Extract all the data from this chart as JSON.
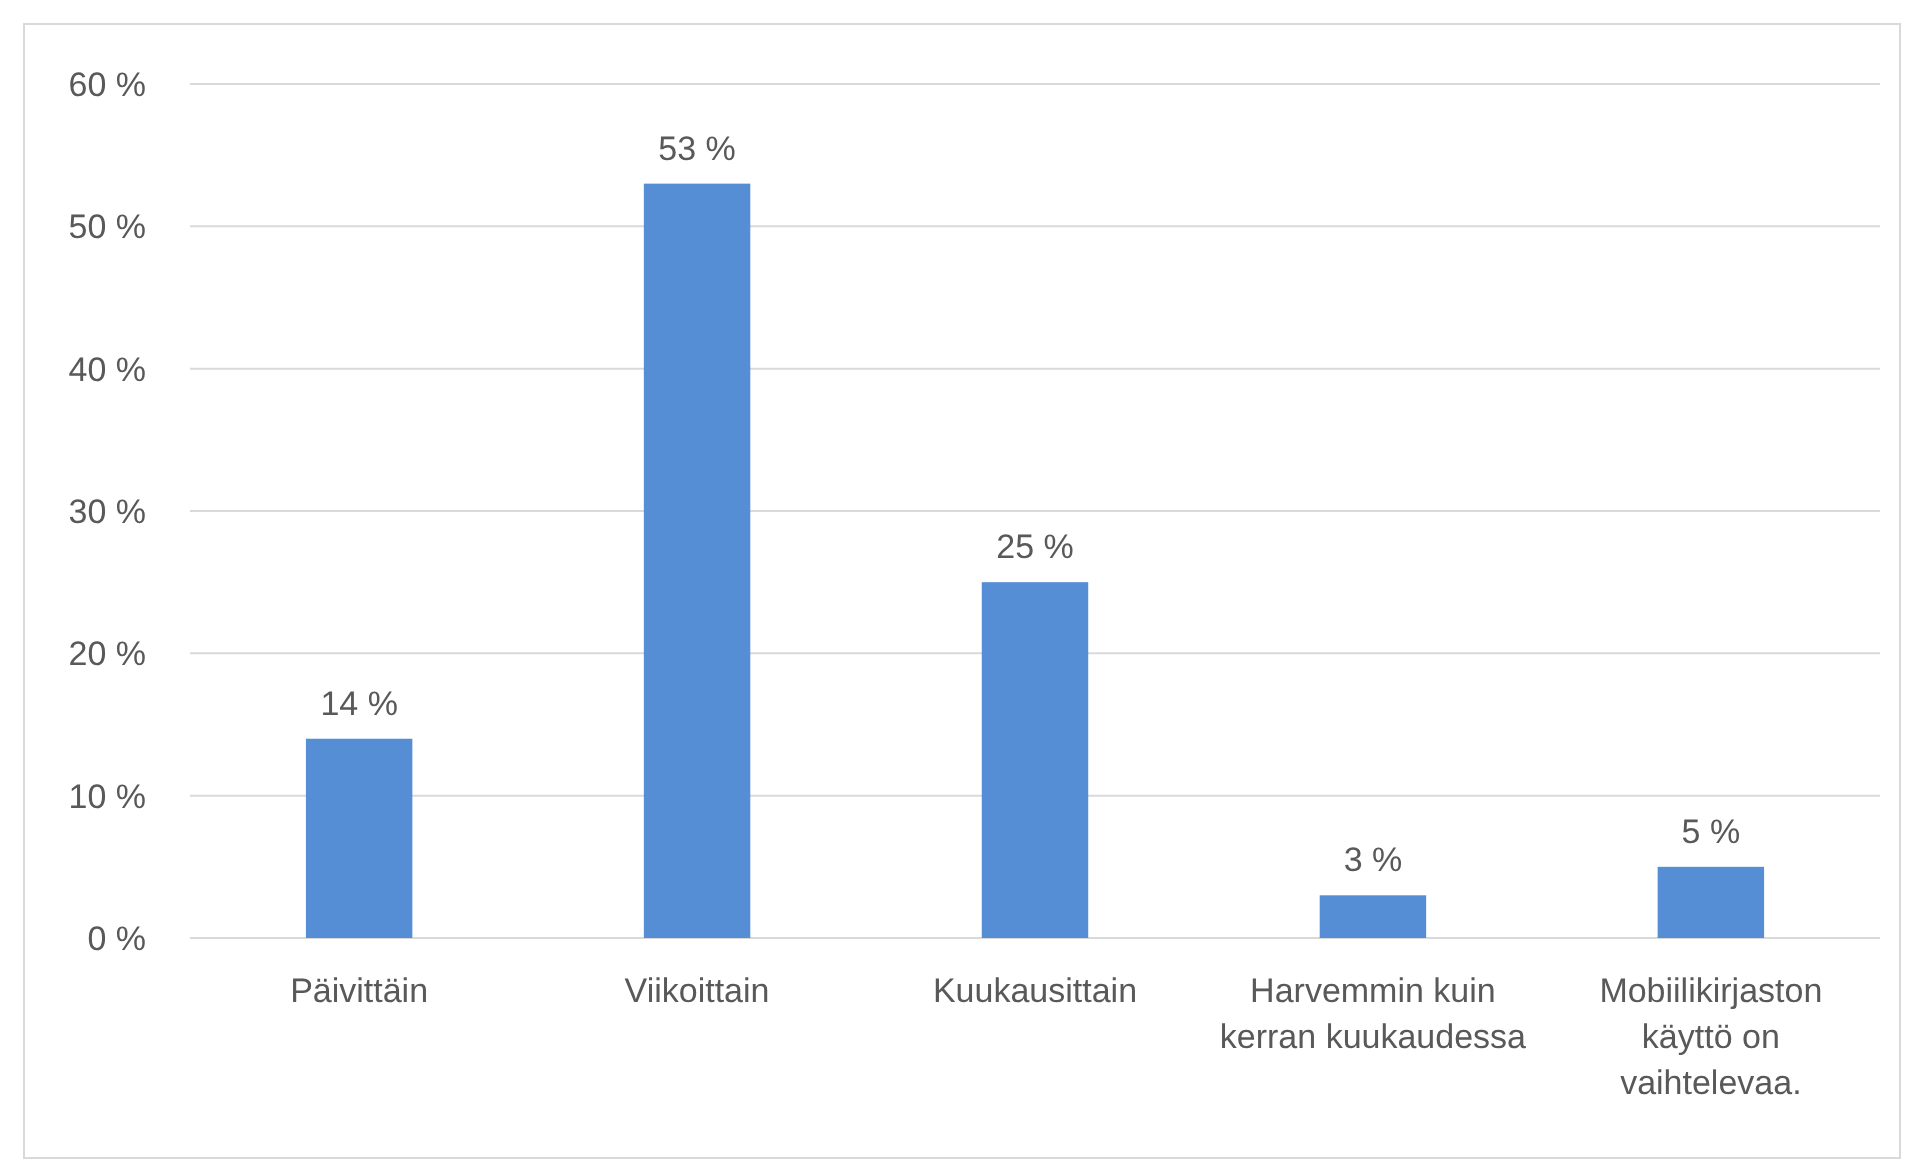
{
  "chart_data": {
    "type": "bar",
    "categories": [
      "Päivittäin",
      "Viikoittain",
      "Kuukausittain",
      "Harvemmin kuin kerran kuukaudessa",
      "Mobiilikirjaston käyttö on vaihtelevaa."
    ],
    "values": [
      14,
      53,
      25,
      3,
      5
    ],
    "value_labels": [
      "14 %",
      "53 %",
      "25 %",
      "3 %",
      "5 %"
    ],
    "color": "#558ed5",
    "ylim": [
      0,
      60
    ],
    "yticks": [
      {
        "value": 0,
        "label": "0 %"
      },
      {
        "value": 10,
        "label": "10 %"
      },
      {
        "value": 20,
        "label": "20 %"
      },
      {
        "value": 30,
        "label": "30 %"
      },
      {
        "value": 40,
        "label": "40 %"
      },
      {
        "value": 50,
        "label": "50 %"
      },
      {
        "value": 60,
        "label": "60 %"
      }
    ],
    "grid": "y"
  }
}
